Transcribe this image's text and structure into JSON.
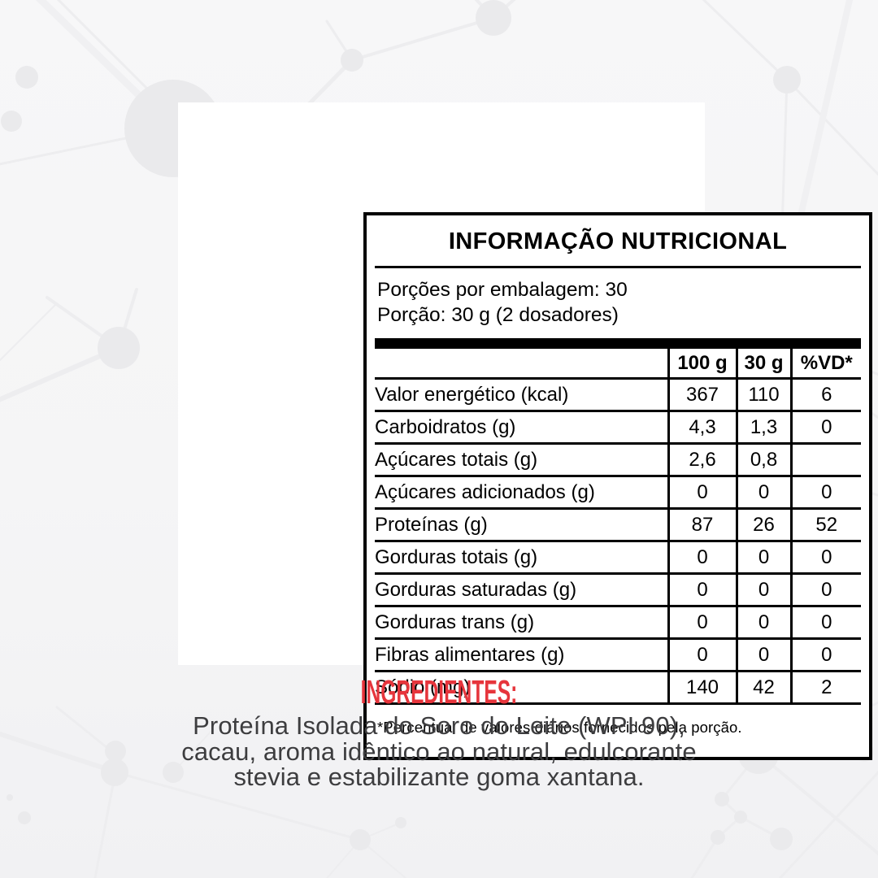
{
  "page": {
    "background_color": "#f5f5f6",
    "molecule_color": "#eaeaec",
    "molecule_line_color": "#ededef"
  },
  "label": {
    "title": "INFORMAÇÃO NUTRICIONAL",
    "servings_per_package": "Porções por embalagem: 30",
    "serving_size": "Porção: 30 g (2 dosadores)",
    "columns": [
      "100 g",
      "30 g",
      "%VD*"
    ],
    "rows": [
      {
        "label": "Valor energético (kcal)",
        "indent": 0,
        "per_100g": "367",
        "per_30g": "110",
        "pct_vd": "6"
      },
      {
        "label": "Carboidratos (g)",
        "indent": 0,
        "per_100g": "4,3",
        "per_30g": "1,3",
        "pct_vd": "0"
      },
      {
        "label": "Açúcares totais (g)",
        "indent": 1,
        "per_100g": "2,6",
        "per_30g": "0,8",
        "pct_vd": ""
      },
      {
        "label": "Açúcares adicionados (g)",
        "indent": 2,
        "per_100g": "0",
        "per_30g": "0",
        "pct_vd": "0"
      },
      {
        "label": "Proteínas (g)",
        "indent": 0,
        "per_100g": "87",
        "per_30g": "26",
        "pct_vd": "52"
      },
      {
        "label": "Gorduras totais (g)",
        "indent": 0,
        "per_100g": "0",
        "per_30g": "0",
        "pct_vd": "0"
      },
      {
        "label": "Gorduras saturadas (g)",
        "indent": 1,
        "per_100g": "0",
        "per_30g": "0",
        "pct_vd": "0"
      },
      {
        "label": "Gorduras trans (g)",
        "indent": 1,
        "per_100g": "0",
        "per_30g": "0",
        "pct_vd": "0"
      },
      {
        "label": "Fibras alimentares (g)",
        "indent": 0,
        "per_100g": "0",
        "per_30g": "0",
        "pct_vd": "0"
      },
      {
        "label": "Sódio (mg)",
        "indent": 0,
        "per_100g": "140",
        "per_30g": "42",
        "pct_vd": "2"
      }
    ],
    "footnote": "*Percentual de valores diários fornecidos pela porção."
  },
  "ingredients": {
    "heading": "INGREDIENTES:",
    "heading_color": "#e6353c",
    "text_color": "#3d3d3f",
    "lines": [
      "Proteína Isolada do Soro do Leite (WPI 90),",
      "cacau, aroma idêntico ao natural, edulcorante",
      "stevia e estabilizante goma xantana."
    ]
  }
}
